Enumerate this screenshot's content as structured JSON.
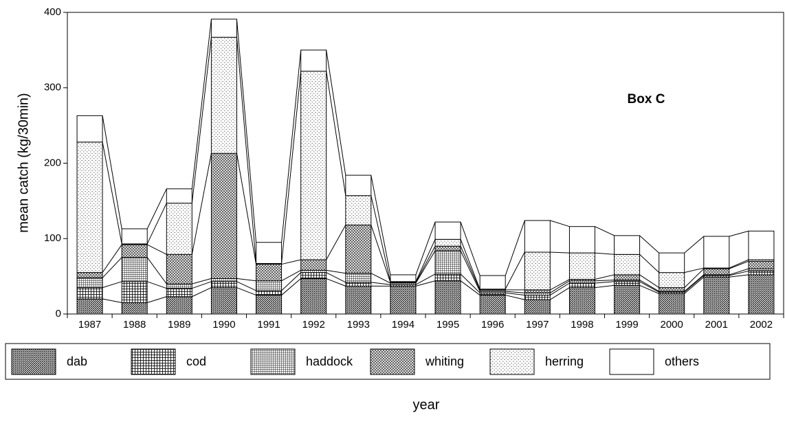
{
  "chart_data": {
    "type": "stacked_bar",
    "annotation": "Box C",
    "x_label": "year",
    "y_label": "mean catch (kg/30min)",
    "categories": [
      "1987",
      "1988",
      "1989",
      "1990",
      "1991",
      "1992",
      "1993",
      "1994",
      "1995",
      "1996",
      "1997",
      "1998",
      "1999",
      "2000",
      "2001",
      "2002"
    ],
    "ylim": [
      0,
      400
    ],
    "yticks": [
      0,
      100,
      200,
      300,
      400
    ],
    "legend": "bottom",
    "series": [
      {
        "name": "dab",
        "color": "#333333",
        "pattern": "dense",
        "values": [
          20,
          15,
          23,
          35,
          25,
          47,
          37,
          37,
          44,
          25,
          19,
          35,
          38,
          27,
          49,
          52
        ]
      },
      {
        "name": "cod",
        "color": "#333333",
        "pattern": "grid",
        "values": [
          15,
          28,
          11,
          8,
          6,
          8,
          5,
          2,
          9,
          3,
          6,
          6,
          5,
          2,
          2,
          5
        ]
      },
      {
        "name": "haddock",
        "color": "#555555",
        "pattern": "fine",
        "values": [
          13,
          32,
          6,
          4,
          13,
          3,
          12,
          2,
          31,
          2,
          3,
          3,
          2,
          1,
          1,
          3
        ]
      },
      {
        "name": "whiting",
        "color": "#444444",
        "pattern": "cross",
        "values": [
          7,
          17,
          39,
          166,
          22,
          14,
          64,
          1,
          6,
          2,
          4,
          2,
          7,
          5,
          8,
          10
        ]
      },
      {
        "name": "herring",
        "color": "#777777",
        "pattern": "dots",
        "values": [
          173,
          1,
          68,
          154,
          1,
          250,
          39,
          1,
          9,
          1,
          50,
          35,
          27,
          20,
          1,
          2
        ]
      },
      {
        "name": "others",
        "color": "#ffffff",
        "pattern": "none",
        "values": [
          35,
          20,
          19,
          24,
          28,
          28,
          27,
          9,
          23,
          18,
          42,
          35,
          25,
          26,
          42,
          38
        ]
      }
    ]
  }
}
